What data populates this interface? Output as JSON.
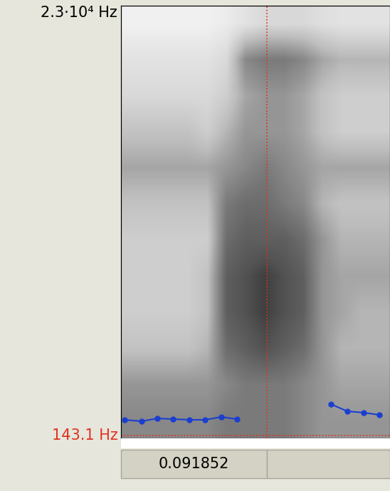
{
  "chart_data": {
    "type": "spectrogram",
    "xlim": [
      0,
      0.1694
    ],
    "ylim": [
      0,
      23000
    ],
    "yticks": [
      {
        "value": 23000,
        "label": "2.3·10⁴ Hz"
      }
    ],
    "tick_labels": "y",
    "zlim": [
      0,
      1
    ],
    "cells": [
      [
        0.12,
        0.12,
        0.12,
        0.12,
        0.12,
        0.15,
        0.2,
        0.25,
        0.25,
        0.25,
        0.22,
        0.2,
        0.2,
        0.2
      ],
      [
        0.2,
        0.2,
        0.2,
        0.2,
        0.2,
        0.25,
        0.55,
        0.6,
        0.6,
        0.55,
        0.45,
        0.4,
        0.4,
        0.4
      ],
      [
        0.25,
        0.25,
        0.25,
        0.25,
        0.25,
        0.3,
        0.45,
        0.5,
        0.5,
        0.45,
        0.35,
        0.3,
        0.3,
        0.3
      ],
      [
        0.35,
        0.35,
        0.35,
        0.35,
        0.3,
        0.4,
        0.5,
        0.5,
        0.5,
        0.45,
        0.35,
        0.3,
        0.3,
        0.3
      ],
      [
        0.45,
        0.45,
        0.45,
        0.45,
        0.45,
        0.5,
        0.55,
        0.6,
        0.55,
        0.5,
        0.45,
        0.45,
        0.45,
        0.45
      ],
      [
        0.35,
        0.35,
        0.35,
        0.35,
        0.35,
        0.6,
        0.65,
        0.65,
        0.6,
        0.55,
        0.4,
        0.35,
        0.35,
        0.35
      ],
      [
        0.3,
        0.3,
        0.3,
        0.3,
        0.3,
        0.65,
        0.7,
        0.7,
        0.7,
        0.65,
        0.5,
        0.4,
        0.4,
        0.4
      ],
      [
        0.3,
        0.3,
        0.3,
        0.3,
        0.35,
        0.7,
        0.75,
        0.8,
        0.75,
        0.7,
        0.5,
        0.45,
        0.45,
        0.45
      ],
      [
        0.3,
        0.3,
        0.3,
        0.3,
        0.35,
        0.7,
        0.75,
        0.8,
        0.75,
        0.7,
        0.5,
        0.45,
        0.4,
        0.4
      ],
      [
        0.35,
        0.35,
        0.35,
        0.35,
        0.4,
        0.65,
        0.7,
        0.75,
        0.7,
        0.65,
        0.5,
        0.4,
        0.4,
        0.4
      ],
      [
        0.5,
        0.5,
        0.5,
        0.5,
        0.5,
        0.55,
        0.6,
        0.6,
        0.6,
        0.55,
        0.5,
        0.45,
        0.45,
        0.45
      ],
      [
        0.55,
        0.55,
        0.55,
        0.55,
        0.55,
        0.6,
        0.6,
        0.6,
        0.6,
        0.55,
        0.5,
        0.5,
        0.5,
        0.5
      ]
    ],
    "y2lim": [
      75,
      500
    ],
    "series": [
      {
        "type": "line",
        "axis": "y2",
        "color": "#1a3fd0",
        "marker": "circle",
        "x": [
          0.0022,
          0.013,
          0.0229,
          0.0327,
          0.043,
          0.0529,
          0.0632,
          0.073,
          0.1,
          0.1322,
          0.1425,
          0.1528,
          0.1627
        ],
        "values": [
          93.2,
          91.8,
          94.6,
          93.9,
          93.2,
          93.2,
          96.0,
          93.9,
          null,
          108.6,
          101.6,
          100.2,
          98.1
        ]
      }
    ],
    "cursor": {
      "time": 0.091852,
      "time_label": "0.091852",
      "frequency": 143.1,
      "frequency_label": "143.1 Hz",
      "color": "#e0301e"
    }
  }
}
